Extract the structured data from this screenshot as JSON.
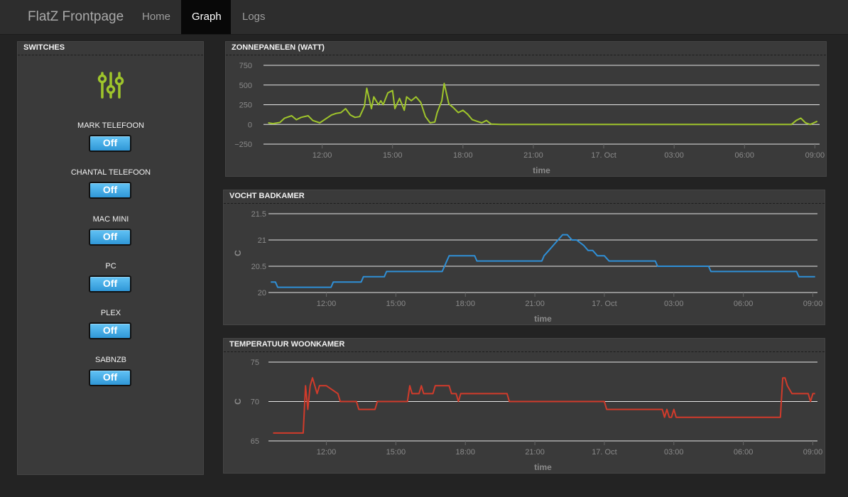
{
  "app": {
    "title": "FlatZ Frontpage"
  },
  "nav": [
    {
      "label": "Home",
      "active": false
    },
    {
      "label": "Graph",
      "active": true
    },
    {
      "label": "Logs",
      "active": false
    }
  ],
  "switches": {
    "title": "SWITCHES",
    "icon": "mixer-sliders-icon",
    "accent": "#9fc52b",
    "items": [
      {
        "label": "MARK TELEFOON",
        "state": "Off"
      },
      {
        "label": "CHANTAL TELEFOON",
        "state": "Off"
      },
      {
        "label": "MAC MINI",
        "state": "Off"
      },
      {
        "label": "PC",
        "state": "Off"
      },
      {
        "label": "PLEX",
        "state": "Off"
      },
      {
        "label": "SABNZB",
        "state": "Off"
      }
    ]
  },
  "chart_data": [
    {
      "type": "line",
      "title": "ZONNEPANELEN (WATT)",
      "xlabel": "time",
      "ylabel": "",
      "color": "#9fc52b",
      "xlim": [
        9.5,
        33.2
      ],
      "ylim": [
        -250,
        750
      ],
      "yticks": [
        -250,
        0,
        250,
        500,
        750
      ],
      "ytick_labels": [
        "−250",
        "0",
        "250",
        "500",
        "750"
      ],
      "xticks": [
        12,
        15,
        18,
        21,
        24,
        27,
        30,
        33
      ],
      "xtick_labels": [
        "12:00",
        "15:00",
        "18:00",
        "21:00",
        "17. Oct",
        "03:00",
        "06:00",
        "09:00"
      ],
      "grid": true,
      "legend": "none",
      "series": [
        {
          "x": [
            9.7,
            9.9,
            10.2,
            10.4,
            10.7,
            10.9,
            11.1,
            11.4,
            11.6,
            11.9,
            12.1,
            12.4,
            12.6,
            12.8,
            13.0,
            13.2,
            13.4,
            13.6,
            13.8,
            13.9,
            14.1,
            14.2,
            14.4,
            14.5,
            14.6,
            14.8,
            15.0,
            15.1,
            15.3,
            15.5,
            15.6,
            15.8,
            16.0,
            16.2,
            16.4,
            16.6,
            16.8,
            16.9,
            17.1,
            17.2,
            17.4,
            17.6,
            17.8,
            18.0,
            18.2,
            18.4,
            18.6,
            18.8,
            19.0,
            19.2,
            19.6,
            20,
            22,
            24,
            26,
            28,
            30,
            31.8,
            32.0,
            32.2,
            32.4,
            32.6,
            32.8,
            33.1
          ],
          "y": [
            20,
            10,
            25,
            80,
            110,
            60,
            90,
            110,
            50,
            20,
            60,
            120,
            140,
            150,
            200,
            120,
            90,
            100,
            230,
            460,
            200,
            350,
            250,
            300,
            250,
            400,
            430,
            200,
            330,
            180,
            350,
            300,
            350,
            280,
            100,
            20,
            30,
            150,
            300,
            520,
            260,
            210,
            150,
            180,
            130,
            60,
            40,
            20,
            50,
            5,
            0,
            0,
            0,
            0,
            0,
            0,
            0,
            0,
            0,
            50,
            80,
            20,
            0,
            40
          ]
        }
      ]
    },
    {
      "type": "line",
      "title": "VOCHT BADKAMER",
      "xlabel": "time",
      "ylabel": "C",
      "color": "#2f8fd6",
      "xlim": [
        9.5,
        33.2
      ],
      "ylim": [
        20,
        21.5
      ],
      "yticks": [
        20,
        20.5,
        21,
        21.5
      ],
      "ytick_labels": [
        "20",
        "20.5",
        "21",
        "21.5"
      ],
      "xticks": [
        12,
        15,
        18,
        21,
        24,
        27,
        30,
        33
      ],
      "xtick_labels": [
        "12:00",
        "15:00",
        "18:00",
        "21:00",
        "17. Oct",
        "03:00",
        "06:00",
        "09:00"
      ],
      "grid": true,
      "legend": "none",
      "series": [
        {
          "x": [
            9.6,
            9.8,
            9.9,
            12.2,
            12.3,
            13.5,
            13.6,
            14.5,
            14.6,
            15.5,
            15.6,
            17.0,
            17.1,
            17.2,
            17.3,
            18.4,
            18.5,
            21.3,
            21.4,
            21.6,
            21.8,
            22.0,
            22.2,
            22.4,
            22.6,
            22.8,
            23.1,
            23.3,
            23.5,
            23.7,
            24.0,
            24.2,
            24.4,
            24.6,
            24.8,
            25.0,
            25.2,
            25.4,
            25.6,
            26.2,
            26.3,
            28.5,
            28.6,
            32.3,
            32.4,
            33.1
          ],
          "y": [
            20.2,
            20.2,
            20.1,
            20.1,
            20.2,
            20.2,
            20.3,
            20.3,
            20.4,
            20.4,
            20.4,
            20.4,
            20.5,
            20.6,
            20.7,
            20.7,
            20.6,
            20.6,
            20.7,
            20.8,
            20.9,
            21.0,
            21.1,
            21.1,
            21.0,
            21.0,
            20.9,
            20.8,
            20.8,
            20.7,
            20.7,
            20.6,
            20.6,
            20.6,
            20.6,
            20.6,
            20.6,
            20.6,
            20.6,
            20.6,
            20.5,
            20.5,
            20.4,
            20.4,
            20.3,
            20.3
          ]
        }
      ]
    },
    {
      "type": "line",
      "title": "TEMPERATUUR WOONKAMER",
      "xlabel": "time",
      "ylabel": "C",
      "color": "#d13b2b",
      "xlim": [
        9.5,
        33.2
      ],
      "ylim": [
        65,
        75
      ],
      "yticks": [
        65,
        70,
        75
      ],
      "ytick_labels": [
        "65",
        "70",
        "75"
      ],
      "xticks": [
        12,
        15,
        18,
        21,
        24,
        27,
        30,
        33
      ],
      "xtick_labels": [
        "12:00",
        "15:00",
        "18:00",
        "21:00",
        "17. Oct",
        "03:00",
        "06:00",
        "09:00"
      ],
      "grid": true,
      "legend": "none",
      "series": [
        {
          "x": [
            9.7,
            11.0,
            11.1,
            11.2,
            11.3,
            11.4,
            11.6,
            11.7,
            11.8,
            12.0,
            12.5,
            12.6,
            12.8,
            13.3,
            13.4,
            14.1,
            14.2,
            15.5,
            15.6,
            15.7,
            15.8,
            16.0,
            16.1,
            16.2,
            16.4,
            16.6,
            16.7,
            17.3,
            17.4,
            17.6,
            17.7,
            17.8,
            19.8,
            19.9,
            24.0,
            24.1,
            26.5,
            26.6,
            26.7,
            26.8,
            26.9,
            27.0,
            27.1,
            31.6,
            31.7,
            31.8,
            31.9,
            32.1,
            32.2,
            32.8,
            32.9,
            33.0,
            33.1
          ],
          "y": [
            66,
            66,
            72,
            69,
            72,
            73,
            71,
            72,
            72,
            72,
            71,
            70,
            70,
            70,
            69,
            69,
            70,
            70,
            72,
            71,
            71,
            71,
            72,
            71,
            71,
            71,
            72,
            72,
            71,
            71,
            70,
            71,
            71,
            70,
            70,
            69,
            69,
            68,
            69,
            68,
            68,
            69,
            68,
            68,
            73,
            73,
            72,
            71,
            71,
            71,
            70,
            71,
            71
          ]
        }
      ]
    }
  ]
}
